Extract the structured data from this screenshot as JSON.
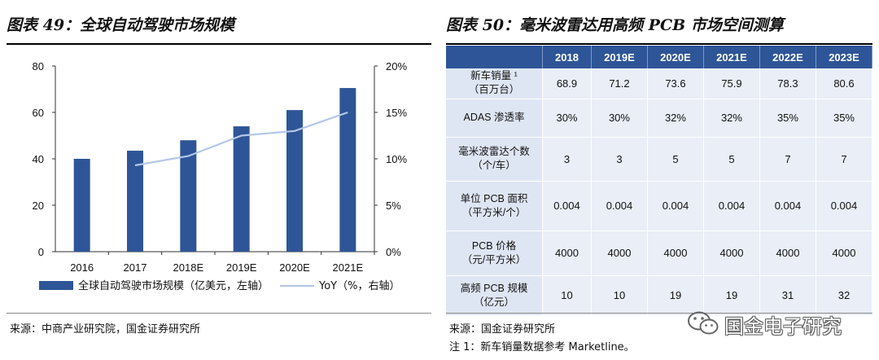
{
  "left_panel": {
    "title": "图表 49：全球自动驾驶市场规模",
    "source": "来源：中商产业研究院，国金证券研究所",
    "legend": {
      "bar_label": "全球自动驾驶市场规模（亿美元，左轴）",
      "line_label": "YoY（%，右轴）"
    }
  },
  "chart_data": {
    "type": "bar",
    "categories": [
      "2016",
      "2017",
      "2018E",
      "2019E",
      "2020E",
      "2021E"
    ],
    "series": [
      {
        "name": "全球自动驾驶市场规模（亿美元，左轴）",
        "type": "bar",
        "axis": "left",
        "values": [
          40,
          43.5,
          48,
          54,
          61,
          70.5
        ]
      },
      {
        "name": "YoY（%，右轴）",
        "type": "line",
        "axis": "right",
        "values": [
          null,
          9.3,
          10.3,
          12.5,
          13.0,
          15.0
        ]
      }
    ],
    "y_left": {
      "ticks": [
        "0",
        "20",
        "40",
        "60",
        "80"
      ],
      "lim": [
        0,
        80
      ]
    },
    "y_right": {
      "ticks": [
        "0%",
        "5%",
        "10%",
        "15%",
        "20%"
      ],
      "lim": [
        0,
        20
      ]
    },
    "grid": false,
    "legend_position": "bottom",
    "colors": {
      "bar": "#2e5597",
      "line": "#b4c7e7"
    }
  },
  "right_panel": {
    "title": "图表 50：毫米波雷达用高频 PCB 市场空间测算",
    "columns": [
      "",
      "2018",
      "2019E",
      "2020E",
      "2021E",
      "2022E",
      "2023E"
    ],
    "rows": [
      {
        "label_line1": "新车销量 ¹",
        "label_line2": "（百万台）",
        "values": [
          "68.9",
          "71.2",
          "73.6",
          "75.9",
          "78.3",
          "80.6"
        ]
      },
      {
        "label_line1": "ADAS 渗透率",
        "label_line2": "",
        "values": [
          "30%",
          "30%",
          "32%",
          "32%",
          "35%",
          "35%"
        ]
      },
      {
        "label_line1": "毫米波雷达个数",
        "label_line2": "（个/车）",
        "values": [
          "3",
          "3",
          "5",
          "5",
          "7",
          "7"
        ]
      },
      {
        "label_line1": "单位 PCB 面积",
        "label_line2": "（平方米/个）",
        "values": [
          "0.004",
          "0.004",
          "0.004",
          "0.004",
          "0.004",
          "0.004"
        ]
      },
      {
        "label_line1": "PCB 价格",
        "label_line2": "（元/平方米）",
        "values": [
          "4000",
          "4000",
          "4000",
          "4000",
          "4000",
          "4000"
        ]
      },
      {
        "label_line1": "高频 PCB 规模",
        "label_line2": "（亿元）",
        "values": [
          "10",
          "10",
          "19",
          "19",
          "31",
          "32"
        ]
      }
    ],
    "source": "来源：国金证券研究所",
    "note": "注 1：新车销量数据参考 Marketline。"
  },
  "watermark": {
    "text": "国金电子研究",
    "icon": "wechat-icon"
  },
  "colors": {
    "header_bg": "#2e5597",
    "cell_bg": "#e9eef7",
    "rowhead_bg": "#dfe6f3"
  }
}
